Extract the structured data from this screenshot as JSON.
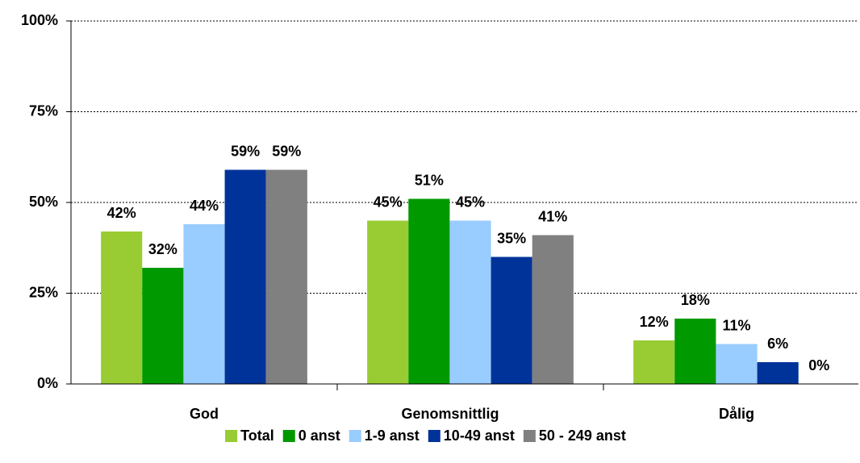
{
  "chart_data": {
    "type": "bar",
    "categories": [
      "God",
      "Genomsnittlig",
      "Dålig"
    ],
    "series": [
      {
        "name": "Total",
        "color": "#99cc33",
        "values": [
          42,
          45,
          12
        ],
        "value_labels": [
          "42%",
          "45%",
          "12%"
        ]
      },
      {
        "name": "0 anst",
        "color": "#009900",
        "values": [
          32,
          51,
          18
        ],
        "value_labels": [
          "32%",
          "51%",
          "18%"
        ]
      },
      {
        "name": "1-9 anst",
        "color": "#99ccff",
        "values": [
          44,
          45,
          11
        ],
        "value_labels": [
          "44%",
          "45%",
          "11%"
        ]
      },
      {
        "name": "10-49 anst",
        "color": "#003399",
        "values": [
          59,
          35,
          6
        ],
        "value_labels": [
          "59%",
          "35%",
          "6%"
        ]
      },
      {
        "name": "50 - 249 anst",
        "color": "#808080",
        "values": [
          59,
          41,
          0
        ],
        "value_labels": [
          "59%",
          "41%",
          "0%"
        ]
      }
    ],
    "ylim": [
      0,
      100
    ],
    "yticks": [
      {
        "value": 0,
        "label": "0%"
      },
      {
        "value": 25,
        "label": "25%"
      },
      {
        "value": 50,
        "label": "50%"
      },
      {
        "value": 75,
        "label": "75%"
      },
      {
        "value": 100,
        "label": "100%"
      }
    ],
    "grid": true,
    "legend": "bottom"
  }
}
